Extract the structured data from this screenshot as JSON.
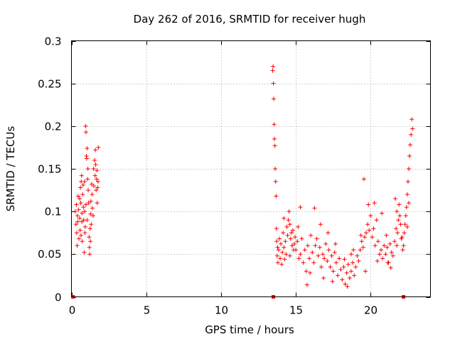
{
  "chart_data": {
    "type": "scatter",
    "title": "Day 262 of 2016, SRMTID for receiver hugh",
    "xlabel": "GPS time / hours",
    "ylabel": "SRMTID / TECUs",
    "xlim": [
      0,
      24
    ],
    "ylim": [
      0,
      0.3
    ],
    "xticks": [
      0,
      5,
      10,
      15,
      20
    ],
    "yticks": [
      0,
      0.05,
      0.1,
      0.15,
      0.2,
      0.25,
      0.3
    ],
    "ytick_labels": [
      "0",
      "0.05",
      "0.1",
      "0.15",
      "0.2",
      "0.25",
      "0.3"
    ],
    "grid": true,
    "marker": "+",
    "color": "#ff0000",
    "zero_markers_x": [
      0.1,
      13.5,
      22.2
    ],
    "series": [
      {
        "name": "SRMTID",
        "points": [
          [
            0.25,
            0.1
          ],
          [
            0.3,
            0.085
          ],
          [
            0.35,
            0.075
          ],
          [
            0.38,
            0.06
          ],
          [
            0.4,
            0.095
          ],
          [
            0.45,
            0.118
          ],
          [
            0.48,
            0.102
          ],
          [
            0.5,
            0.068
          ],
          [
            0.55,
            0.092
          ],
          [
            0.58,
            0.078
          ],
          [
            0.6,
            0.128
          ],
          [
            0.62,
            0.11
          ],
          [
            0.65,
            0.135
          ],
          [
            0.68,
            0.142
          ],
          [
            0.7,
            0.088
          ],
          [
            0.72,
            0.065
          ],
          [
            0.75,
            0.12
          ],
          [
            0.78,
            0.131
          ],
          [
            0.8,
            0.105
          ],
          [
            0.82,
            0.09
          ],
          [
            0.85,
            0.052
          ],
          [
            0.88,
            0.1
          ],
          [
            0.9,
            0.075
          ],
          [
            0.92,
            0.082
          ],
          [
            0.95,
            0.2
          ],
          [
            0.97,
            0.193
          ],
          [
            1.0,
            0.165
          ],
          [
            1.02,
            0.162
          ],
          [
            1.05,
            0.174
          ],
          [
            1.08,
            0.138
          ],
          [
            1.1,
            0.15
          ],
          [
            1.12,
            0.125
          ],
          [
            1.15,
            0.11
          ],
          [
            1.18,
            0.07
          ],
          [
            1.2,
            0.058
          ],
          [
            1.22,
            0.05
          ],
          [
            1.25,
            0.08
          ],
          [
            1.28,
            0.097
          ],
          [
            1.3,
            0.112
          ],
          [
            1.35,
            0.132
          ],
          [
            1.38,
            0.12
          ],
          [
            1.4,
            0.104
          ],
          [
            1.45,
            0.095
          ],
          [
            1.5,
            0.13
          ],
          [
            1.55,
            0.16
          ],
          [
            1.58,
            0.142
          ],
          [
            1.6,
            0.172
          ],
          [
            1.62,
            0.155
          ],
          [
            1.65,
            0.125
          ],
          [
            1.7,
            0.148
          ],
          [
            1.72,
            0.11
          ],
          [
            1.75,
            0.128
          ],
          [
            1.78,
            0.135
          ],
          [
            1.8,
            0.175
          ],
          [
            0.42,
            0.088
          ],
          [
            0.55,
            0.115
          ],
          [
            0.7,
            0.098
          ],
          [
            0.88,
            0.135
          ],
          [
            1.05,
            0.09
          ],
          [
            1.32,
            0.085
          ],
          [
            1.48,
            0.15
          ],
          [
            1.68,
            0.138
          ],
          [
            0.33,
            0.108
          ],
          [
            0.64,
            0.072
          ],
          [
            0.97,
            0.108
          ],
          [
            1.27,
            0.065
          ],
          [
            13.45,
            0.265
          ],
          [
            13.48,
            0.27
          ],
          [
            13.5,
            0.25
          ],
          [
            13.52,
            0.232
          ],
          [
            13.55,
            0.202
          ],
          [
            13.57,
            0.185
          ],
          [
            13.6,
            0.177
          ],
          [
            13.62,
            0.15
          ],
          [
            13.65,
            0.135
          ],
          [
            13.68,
            0.118
          ],
          [
            13.7,
            0.08
          ],
          [
            13.72,
            0.065
          ],
          [
            13.75,
            0.048
          ],
          [
            13.78,
            0.058
          ],
          [
            13.8,
            0.04
          ],
          [
            13.85,
            0.055
          ],
          [
            13.9,
            0.068
          ],
          [
            13.95,
            0.045
          ],
          [
            14.0,
            0.062
          ],
          [
            14.05,
            0.038
          ],
          [
            14.1,
            0.052
          ],
          [
            14.15,
            0.075
          ],
          [
            14.2,
            0.058
          ],
          [
            14.25,
            0.044
          ],
          [
            14.3,
            0.065
          ],
          [
            14.35,
            0.05
          ],
          [
            14.4,
            0.082
          ],
          [
            14.45,
            0.072
          ],
          [
            14.5,
            0.09
          ],
          [
            14.55,
            0.1
          ],
          [
            14.6,
            0.085
          ],
          [
            14.65,
            0.068
          ],
          [
            14.7,
            0.075
          ],
          [
            14.75,
            0.06
          ],
          [
            14.8,
            0.078
          ],
          [
            14.85,
            0.055
          ],
          [
            14.9,
            0.062
          ],
          [
            14.95,
            0.07
          ],
          [
            15.0,
            0.055
          ],
          [
            15.1,
            0.065
          ],
          [
            15.2,
            0.045
          ],
          [
            15.3,
            0.05
          ],
          [
            15.4,
            0.068
          ],
          [
            15.5,
            0.04
          ],
          [
            15.6,
            0.055
          ],
          [
            15.7,
            0.03
          ],
          [
            15.8,
            0.06
          ],
          [
            15.9,
            0.045
          ],
          [
            16.0,
            0.072
          ],
          [
            16.1,
            0.052
          ],
          [
            16.2,
            0.04
          ],
          [
            16.3,
            0.06
          ],
          [
            16.4,
            0.068
          ],
          [
            16.5,
            0.048
          ],
          [
            16.6,
            0.058
          ],
          [
            16.7,
            0.035
          ],
          [
            16.8,
            0.05
          ],
          [
            16.9,
            0.045
          ],
          [
            17.0,
            0.062
          ],
          [
            17.1,
            0.042
          ],
          [
            17.2,
            0.055
          ],
          [
            17.3,
            0.035
          ],
          [
            17.4,
            0.048
          ],
          [
            17.5,
            0.03
          ],
          [
            17.6,
            0.052
          ],
          [
            17.7,
            0.04
          ],
          [
            17.8,
            0.025
          ],
          [
            17.9,
            0.045
          ],
          [
            18.0,
            0.032
          ],
          [
            18.1,
            0.02
          ],
          [
            18.2,
            0.035
          ],
          [
            18.3,
            0.015
          ],
          [
            18.4,
            0.028
          ],
          [
            18.5,
            0.038
          ],
          [
            18.6,
            0.022
          ],
          [
            18.7,
            0.03
          ],
          [
            18.8,
            0.04
          ],
          [
            18.9,
            0.025
          ],
          [
            19.0,
            0.035
          ],
          [
            19.1,
            0.048
          ],
          [
            19.2,
            0.042
          ],
          [
            19.3,
            0.055
          ],
          [
            19.4,
            0.065
          ],
          [
            19.5,
            0.058
          ],
          [
            19.55,
            0.138
          ],
          [
            19.6,
            0.07
          ],
          [
            19.7,
            0.075
          ],
          [
            19.8,
            0.085
          ],
          [
            19.9,
            0.078
          ],
          [
            20.0,
            0.095
          ],
          [
            20.1,
            0.07
          ],
          [
            20.2,
            0.08
          ],
          [
            20.3,
            0.06
          ],
          [
            20.4,
            0.09
          ],
          [
            20.5,
            0.065
          ],
          [
            20.6,
            0.05
          ],
          [
            20.7,
            0.055
          ],
          [
            20.8,
            0.045
          ],
          [
            20.9,
            0.06
          ],
          [
            21.0,
            0.05
          ],
          [
            21.1,
            0.058
          ],
          [
            21.2,
            0.04
          ],
          [
            21.3,
            0.062
          ],
          [
            21.4,
            0.052
          ],
          [
            21.5,
            0.048
          ],
          [
            21.6,
            0.065
          ],
          [
            21.7,
            0.08
          ],
          [
            21.75,
            0.1
          ],
          [
            21.8,
            0.075
          ],
          [
            21.85,
            0.09
          ],
          [
            21.9,
            0.108
          ],
          [
            21.95,
            0.095
          ],
          [
            22.0,
            0.085
          ],
          [
            22.05,
            0.068
          ],
          [
            22.1,
            0.07
          ],
          [
            22.15,
            0.055
          ],
          [
            22.2,
            0.06
          ],
          [
            22.25,
            0.075
          ],
          [
            22.3,
            0.085
          ],
          [
            22.35,
            0.095
          ],
          [
            22.4,
            0.105
          ],
          [
            22.45,
            0.12
          ],
          [
            22.5,
            0.135
          ],
          [
            22.55,
            0.15
          ],
          [
            22.6,
            0.165
          ],
          [
            22.65,
            0.178
          ],
          [
            22.7,
            0.19
          ],
          [
            22.75,
            0.208
          ],
          [
            22.8,
            0.197
          ],
          [
            22.55,
            0.11
          ],
          [
            22.45,
            0.082
          ],
          [
            15.3,
            0.105
          ],
          [
            16.25,
            0.104
          ],
          [
            17.15,
            0.075
          ],
          [
            18.45,
            0.012
          ],
          [
            18.7,
            0.05
          ],
          [
            19.85,
            0.108
          ],
          [
            20.75,
            0.098
          ],
          [
            21.05,
            0.072
          ],
          [
            21.65,
            0.115
          ],
          [
            14.2,
            0.092
          ],
          [
            15.75,
            0.014
          ],
          [
            16.85,
            0.022
          ],
          [
            17.65,
            0.062
          ],
          [
            18.25,
            0.044
          ],
          [
            19.35,
            0.072
          ],
          [
            20.45,
            0.042
          ],
          [
            21.35,
            0.034
          ],
          [
            14.6,
            0.048
          ],
          [
            15.15,
            0.082
          ],
          [
            15.95,
            0.028
          ],
          [
            16.65,
            0.085
          ],
          [
            17.45,
            0.018
          ],
          [
            18.85,
            0.055
          ],
          [
            19.65,
            0.03
          ],
          [
            20.25,
            0.11
          ],
          [
            21.15,
            0.04
          ],
          [
            21.75,
            0.06
          ]
        ]
      }
    ]
  }
}
